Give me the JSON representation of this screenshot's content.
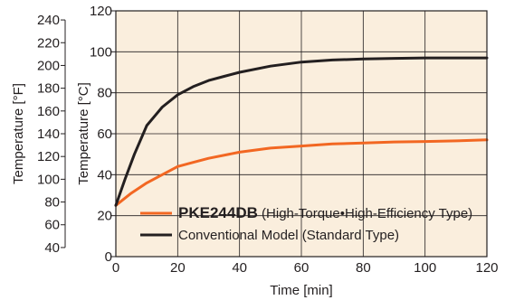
{
  "chart_data": {
    "type": "line",
    "xlabel": "Time [min]",
    "ylabel": "Temperature [°C]",
    "ylabel_secondary": "Temperature [°F]",
    "xlim": [
      0,
      120
    ],
    "ylim": [
      0,
      120
    ],
    "x_ticks": [
      "0",
      "20",
      "40",
      "60",
      "80",
      "100",
      "120"
    ],
    "y_ticks": [
      "0",
      "20",
      "40",
      "60",
      "80",
      "100",
      "120"
    ],
    "y2_ticks": [
      {
        "f": 40,
        "label": "40"
      },
      {
        "f": 60,
        "label": "60"
      },
      {
        "f": 80,
        "label": "80"
      },
      {
        "f": 100,
        "label": "100"
      },
      {
        "f": 120,
        "label": "120"
      },
      {
        "f": 140,
        "label": "140"
      },
      {
        "f": 160,
        "label": "160"
      },
      {
        "f": 180,
        "label": "180"
      },
      {
        "f": 200,
        "label": "200"
      },
      {
        "f": 220,
        "label": "220"
      },
      {
        "f": 240,
        "label": "240"
      }
    ],
    "grid": true,
    "plot_background": "#faeedd",
    "legend_position": "bottom-left",
    "series": [
      {
        "name_bold": "PKE244DB",
        "name_rest": " (High-Torque•High-Efficiency Type)",
        "color": "#f26722",
        "x": [
          0,
          5,
          10,
          15,
          20,
          25,
          30,
          40,
          50,
          60,
          70,
          80,
          90,
          100,
          110,
          120
        ],
        "y": [
          25,
          31,
          36,
          40,
          44,
          46,
          48,
          51,
          53,
          54,
          55,
          55.5,
          56,
          56.2,
          56.5,
          57
        ]
      },
      {
        "name": "Conventional Model (Standard Type)",
        "color": "#231f20",
        "x": [
          0,
          3,
          6,
          10,
          15,
          20,
          25,
          30,
          35,
          40,
          50,
          60,
          70,
          80,
          90,
          100,
          110,
          120
        ],
        "y": [
          25,
          38,
          50,
          64,
          73,
          79,
          83,
          86,
          88,
          90,
          93,
          95,
          96,
          96.5,
          96.8,
          97,
          97,
          97
        ]
      }
    ]
  }
}
